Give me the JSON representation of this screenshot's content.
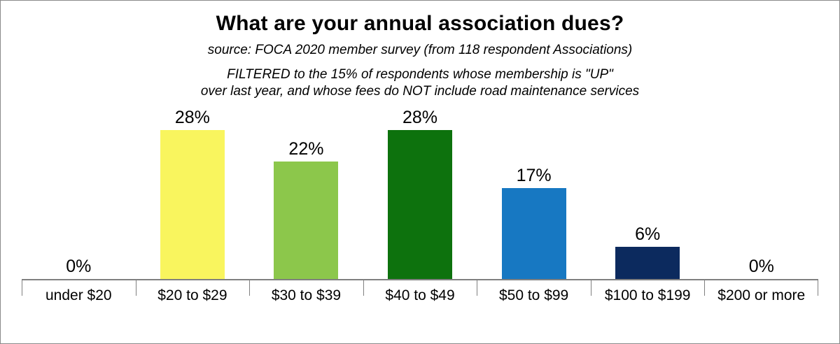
{
  "header": {
    "title": "What are your annual association dues?",
    "subtitle": "source: FOCA 2020 member survey (from 118 respondent Associations)",
    "filter_line1": "FILTERED to the 15% of respondents whose membership is \"UP\"",
    "filter_line2": "over last year, and whose fees do NOT include road maintenance services"
  },
  "chart_data": {
    "type": "bar",
    "title": "What are your annual association dues?",
    "categories": [
      "under $20",
      "$20 to $29",
      "$30 to $39",
      "$40 to $49",
      "$50 to $99",
      "$100 to $199",
      "$200 or more"
    ],
    "values": [
      0,
      28,
      22,
      28,
      17,
      6,
      0
    ],
    "value_labels": [
      "0%",
      "28%",
      "22%",
      "28%",
      "17%",
      "6%",
      "0%"
    ],
    "bar_colors": [
      "#ffffff",
      "#f9f55e",
      "#8cc74b",
      "#0d720d",
      "#1778c2",
      "#0c2a5e",
      "#ffffff"
    ],
    "xlabel": "",
    "ylabel": "",
    "ylim": [
      0,
      30
    ],
    "grid": false,
    "legend": false,
    "data_labels": true,
    "axis_color": "#808080"
  }
}
